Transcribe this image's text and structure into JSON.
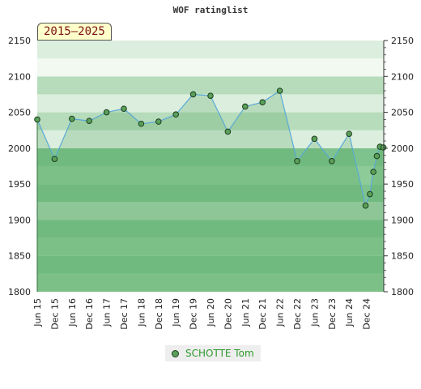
{
  "chart_data": {
    "type": "line",
    "title": "WOF ratinglist",
    "period_label": "2015–2025",
    "xlabel": "",
    "ylabel": "",
    "ylim": [
      1800,
      2150
    ],
    "y_ticks": [
      1800,
      1850,
      1900,
      1950,
      2000,
      2050,
      2100,
      2150
    ],
    "x_ticks": [
      "Jun 15",
      "Dec 15",
      "Jun 16",
      "Dec 16",
      "Jun 17",
      "Dec 17",
      "Jun 18",
      "Dec 18",
      "Jun 19",
      "Dec 19",
      "Jun 20",
      "Dec 20",
      "Jun 21",
      "Dec 21",
      "Jun 22",
      "Dec 22",
      "Jun 23",
      "Dec 23",
      "Jun 24",
      "Dec 24"
    ],
    "legend_position": "bottom-center",
    "grid": true,
    "series": [
      {
        "name": "SCHOTTE Tom",
        "color": "#5a9f5a",
        "line_color": "#5aa9d6",
        "x": [
          0,
          1,
          2,
          3,
          4,
          5,
          6,
          7,
          8,
          9,
          10,
          11,
          12,
          13,
          14,
          15,
          16,
          17,
          18,
          18.95,
          19.2,
          19.4,
          19.6,
          19.78,
          19.98
        ],
        "values": [
          2040,
          1985,
          2041,
          2038,
          2050,
          2055,
          2034,
          2037,
          2047,
          2075,
          2073,
          2023,
          2058,
          2064,
          2080,
          1982,
          2013,
          1982,
          2020,
          1920,
          1936,
          1967,
          1989,
          2002,
          2001
        ]
      }
    ],
    "colors": {
      "band_light": "#f1f9f1",
      "band_mid": "#dceedd",
      "band_green": "#b6dcbc",
      "band_green2": "#a5d3ad",
      "band_dark": "#8dcb98",
      "band_darker": "#7ec38d",
      "marker_stroke": "#1d3d1d"
    }
  }
}
